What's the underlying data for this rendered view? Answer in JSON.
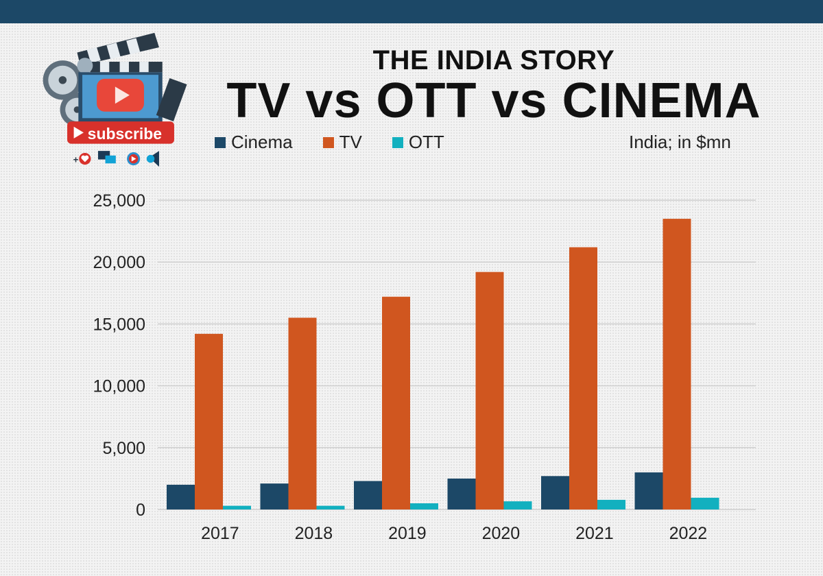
{
  "header": {
    "kicker": "THE INDIA STORY",
    "title": "TV vs OTT vs CINEMA",
    "unit_note": "India; in $mn"
  },
  "logo": {
    "badge_label": "subscribe",
    "icons": [
      "film-clapper-icon",
      "film-reel-icon",
      "play-button-icon",
      "heart-icon",
      "chat-bubbles-icon",
      "megaphone-icon"
    ]
  },
  "colors": {
    "topbar": "#1c4867",
    "cinema": "#1c4867",
    "tv": "#d0561f",
    "ott": "#12b0bf"
  },
  "chart_data": {
    "type": "bar",
    "title": "TV vs OTT vs CINEMA",
    "subtitle": "THE INDIA STORY",
    "xlabel": "",
    "ylabel": "India; in $mn",
    "categories": [
      "2017",
      "2018",
      "2019",
      "2020",
      "2021",
      "2022"
    ],
    "series": [
      {
        "name": "Cinema",
        "color": "#1c4867",
        "values": [
          2000,
          2100,
          2300,
          2500,
          2700,
          3000
        ]
      },
      {
        "name": "TV",
        "color": "#d0561f",
        "values": [
          14200,
          15500,
          17200,
          19200,
          21200,
          23500
        ]
      },
      {
        "name": "OTT",
        "color": "#12b0bf",
        "values": [
          300,
          300,
          500,
          660,
          780,
          950
        ]
      }
    ],
    "ylim": [
      0,
      25000
    ],
    "yticks": [
      0,
      5000,
      10000,
      15000,
      20000,
      25000
    ],
    "ytick_labels": [
      "0",
      "5,000",
      "10,000",
      "15,000",
      "20,000",
      "25,000"
    ],
    "grid": true,
    "legend_position": "top-left"
  }
}
